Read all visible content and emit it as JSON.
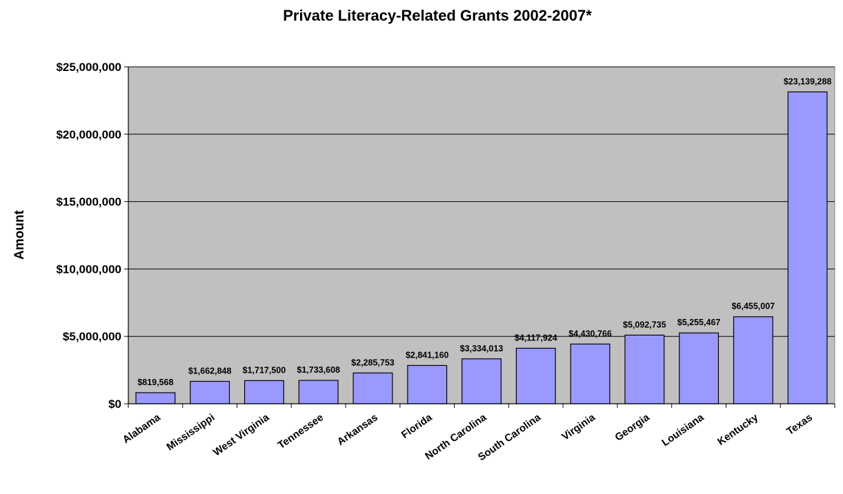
{
  "chart_data": {
    "type": "bar",
    "title": "Private Literacy-Related Grants 2002-2007*",
    "xlabel": "",
    "ylabel": "Amount",
    "ylim": [
      0,
      25000000
    ],
    "yticks": [
      0,
      5000000,
      10000000,
      15000000,
      20000000,
      25000000
    ],
    "ytick_labels": [
      "$0",
      "$5,000,000",
      "$10,000,000",
      "$15,000,000",
      "$20,000,000",
      "$25,000,000"
    ],
    "grid": true,
    "legend": "none",
    "categories": [
      "Alabama",
      "Mississippi",
      "West Virginia",
      "Tennessee",
      "Arkansas",
      "Florida",
      "North Carolina",
      "South Carolina",
      "Virginia",
      "Georgia",
      "Louisiana",
      "Kentucky",
      "Texas"
    ],
    "values": [
      819568,
      1662848,
      1717500,
      1733608,
      2285753,
      2841160,
      3334013,
      4117924,
      4430766,
      5092735,
      5255467,
      6455007,
      23139288
    ],
    "data_labels": [
      "$819,568",
      "$1,662,848",
      "$1,717,500",
      "$1,733,608",
      "$2,285,753",
      "$2,841,160",
      "$3,334,013",
      "$4,117,924",
      "$4,430,766",
      "$5,092,735",
      "$5,255,467",
      "$6,455,007",
      "$23,139,288"
    ],
    "colors": {
      "plot_background": "#c0c0c0",
      "bar_fill": "#9999ff",
      "bar_stroke": "#000000",
      "gridline": "#000000"
    }
  }
}
